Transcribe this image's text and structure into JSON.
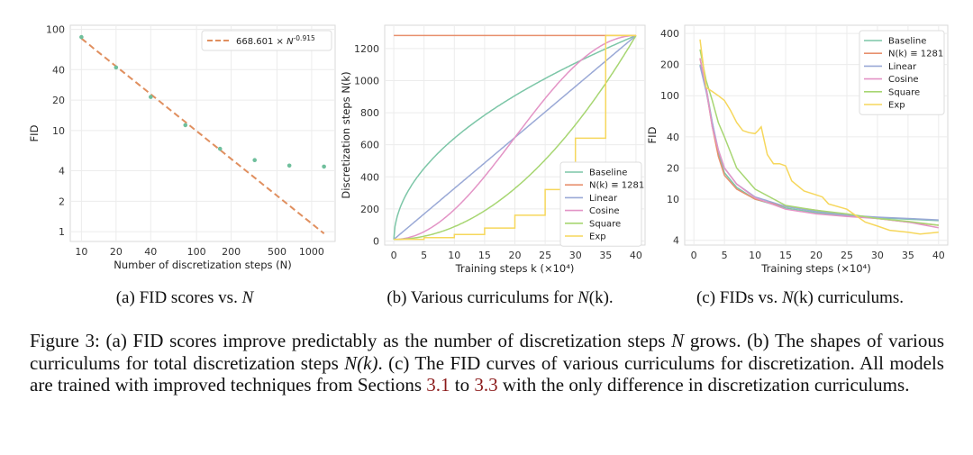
{
  "subcaptions": [
    {
      "label": "(a) FID scores vs. ",
      "var": "N",
      "rest": ""
    },
    {
      "label": "(b) Various curriculums for ",
      "var": "N",
      "rest": "(k)."
    },
    {
      "label": "(c) FIDs vs. ",
      "var": "N",
      "rest": "(k) curriculums."
    }
  ],
  "caption": {
    "fig": "Figure 3:",
    "part1": " (a) FID scores improve predictably as the number of discretization steps ",
    "n1": "N",
    "part2": " grows. (b) The shapes of various curriculums for total discretization steps ",
    "n2": "N(k)",
    "part3": ". (c) The FID curves of various curriculums for discretization. All models are trained with improved techniques from Sections ",
    "ref1": "3.1",
    "part4": " to ",
    "ref2": "3.3",
    "part5": " with the only difference in discretization curriculums."
  },
  "colors": {
    "Baseline": "#7cc6a7",
    "Const": "#e8906e",
    "Linear": "#9aa9d6",
    "Cosine": "#e394c6",
    "Square": "#a7d672",
    "Exp": "#f6d75c",
    "fit": "#e08f5f",
    "points": "#6fbf9c"
  },
  "chart_data": [
    {
      "type": "scatter",
      "xlabel": "Number of discretization steps (N)",
      "ylabel": "FID",
      "xscale": "log",
      "yscale": "log",
      "xlim": [
        8,
        1600
      ],
      "ylim": [
        0.8,
        110
      ],
      "xticks": [
        10,
        20,
        40,
        100,
        200,
        500,
        1000
      ],
      "yticks": [
        1,
        2,
        4,
        10,
        20,
        40,
        100
      ],
      "xtick_labels": [
        "10",
        "20",
        "40",
        "100",
        "200",
        "500",
        "1000"
      ],
      "ytick_labels": [
        "1",
        "2",
        "4",
        "10",
        "20",
        "40",
        "100"
      ],
      "grid": true,
      "legend_position": "top-right",
      "legend": "668.601 × N^-0.915",
      "fit": {
        "coef": 668.601,
        "exp": -0.915,
        "x_range": [
          10,
          1281
        ]
      },
      "points": [
        {
          "x": 10,
          "y": 84
        },
        {
          "x": 20,
          "y": 42
        },
        {
          "x": 40,
          "y": 21.5
        },
        {
          "x": 80,
          "y": 11.3
        },
        {
          "x": 160,
          "y": 6.6
        },
        {
          "x": 320,
          "y": 5.1
        },
        {
          "x": 640,
          "y": 4.5
        },
        {
          "x": 1280,
          "y": 4.4
        }
      ]
    },
    {
      "type": "line",
      "xlabel": "Training steps k (×10⁴)",
      "ylabel": "Discretization steps N(k)",
      "xlim": [
        -1.5,
        41.5
      ],
      "ylim": [
        -25,
        1345
      ],
      "xticks": [
        0,
        5,
        10,
        15,
        20,
        25,
        30,
        35,
        40
      ],
      "yticks": [
        0,
        200,
        400,
        600,
        800,
        1000,
        1200
      ],
      "grid": true,
      "legend_position": "lower-right",
      "series": [
        {
          "name": "Baseline",
          "kind": "baseline"
        },
        {
          "name": "N(k) ≡ 1281",
          "kind": "const"
        },
        {
          "name": "Linear",
          "kind": "linear"
        },
        {
          "name": "Cosine",
          "kind": "cosine"
        },
        {
          "name": "Square",
          "kind": "square"
        },
        {
          "name": "Exp",
          "kind": "exp"
        }
      ],
      "series_formulas": {
        "s0": 10,
        "s1": 1281,
        "K": 40
      }
    },
    {
      "type": "line",
      "xlabel": "Training steps (×10⁴)",
      "ylabel": "FID",
      "yscale": "log",
      "xlim": [
        -1.5,
        41.5
      ],
      "ylim": [
        3.6,
        480
      ],
      "xticks": [
        0,
        5,
        10,
        15,
        20,
        25,
        30,
        35,
        40
      ],
      "yticks": [
        4,
        10,
        20,
        40,
        100,
        200,
        400
      ],
      "grid": true,
      "legend_position": "top-right",
      "series": [
        {
          "name": "Baseline",
          "x": [
            1,
            2,
            3,
            4,
            5,
            7,
            10,
            15,
            20,
            25,
            30,
            35,
            40
          ],
          "y": [
            200,
            120,
            55,
            28,
            18,
            13,
            10,
            8.2,
            7.4,
            6.9,
            6.6,
            6.4,
            6.2
          ]
        },
        {
          "name": "N(k) ≡ 1281",
          "x": [
            1,
            2,
            3,
            4,
            5,
            7,
            10,
            15,
            20,
            25,
            30,
            35,
            40
          ],
          "y": [
            230,
            115,
            50,
            26,
            17,
            12.5,
            10,
            8.5,
            7.8,
            7.0,
            6.5,
            6.0,
            5.6
          ]
        },
        {
          "name": "Linear",
          "x": [
            1,
            2,
            3,
            4,
            5,
            7,
            10,
            15,
            20,
            25,
            30,
            35,
            40
          ],
          "y": [
            195,
            110,
            55,
            30,
            20,
            14,
            10.5,
            8.5,
            7.6,
            7.0,
            6.7,
            6.5,
            6.3
          ]
        },
        {
          "name": "Cosine",
          "x": [
            1,
            2,
            3,
            4,
            5,
            7,
            10,
            15,
            20,
            25,
            30,
            35,
            40
          ],
          "y": [
            230,
            120,
            50,
            30,
            20,
            14,
            10.3,
            8.0,
            7.2,
            6.8,
            6.5,
            6.0,
            5.3
          ]
        },
        {
          "name": "Square",
          "x": [
            1,
            2,
            3,
            4,
            5,
            7,
            10,
            15,
            20,
            25,
            30,
            35,
            40
          ],
          "y": [
            280,
            140,
            90,
            55,
            40,
            20,
            12.5,
            8.7,
            7.8,
            7.2,
            6.5,
            6.1,
            5.6
          ]
        },
        {
          "name": "Exp",
          "x": [
            1,
            2,
            3,
            4,
            5,
            6,
            7,
            8,
            9,
            10,
            10.5,
            11,
            12,
            13,
            14,
            15,
            16,
            18,
            20,
            21,
            22,
            25,
            28,
            30,
            32,
            35,
            37,
            40
          ],
          "y": [
            350,
            120,
            110,
            100,
            90,
            72,
            55,
            46,
            44,
            43,
            46,
            50,
            27,
            22,
            22,
            21,
            15,
            12,
            11,
            10.5,
            9,
            8,
            6,
            5.5,
            5.0,
            4.8,
            4.6,
            4.8
          ]
        }
      ]
    }
  ]
}
